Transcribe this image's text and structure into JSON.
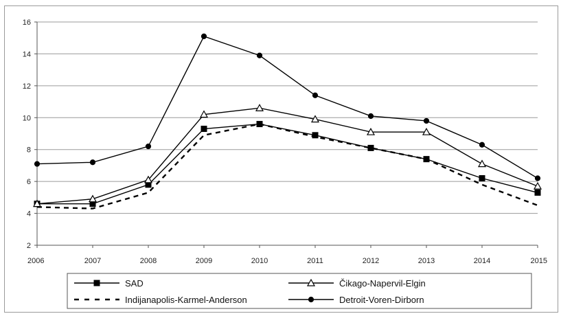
{
  "chart_data": {
    "type": "line",
    "title": "",
    "xlabel": "",
    "ylabel": "",
    "x": [
      "2006",
      "2007",
      "2008",
      "2009",
      "2010",
      "2011",
      "2012",
      "2013",
      "2014",
      "2015"
    ],
    "ylim": [
      2,
      16
    ],
    "yticks": [
      "2",
      "4",
      "6",
      "8",
      "10",
      "12",
      "14",
      "16"
    ],
    "grid": true,
    "legend_position": "bottom",
    "series": [
      {
        "name": "SAD",
        "marker": "square",
        "dash": "solid",
        "color": "#000000",
        "values": [
          4.6,
          4.6,
          5.8,
          9.3,
          9.6,
          8.9,
          8.1,
          7.4,
          6.2,
          5.3
        ]
      },
      {
        "name": "Čikago-Napervil-Elgin",
        "marker": "triangle",
        "dash": "solid",
        "color": "#000000",
        "values": [
          4.6,
          4.9,
          6.1,
          10.2,
          10.6,
          9.9,
          9.1,
          9.1,
          7.1,
          5.7
        ]
      },
      {
        "name": "Indijanapolis-Karmel-Anderson",
        "marker": "none",
        "dash": "dashed",
        "color": "#000000",
        "values": [
          4.4,
          4.3,
          5.3,
          8.9,
          9.6,
          8.8,
          8.1,
          7.4,
          5.8,
          4.5
        ]
      },
      {
        "name": "Detroit-Voren-Dirborn",
        "marker": "circle",
        "dash": "solid",
        "color": "#000000",
        "values": [
          7.1,
          7.2,
          8.2,
          15.1,
          13.9,
          11.4,
          10.1,
          9.8,
          8.3,
          6.2
        ]
      }
    ]
  }
}
